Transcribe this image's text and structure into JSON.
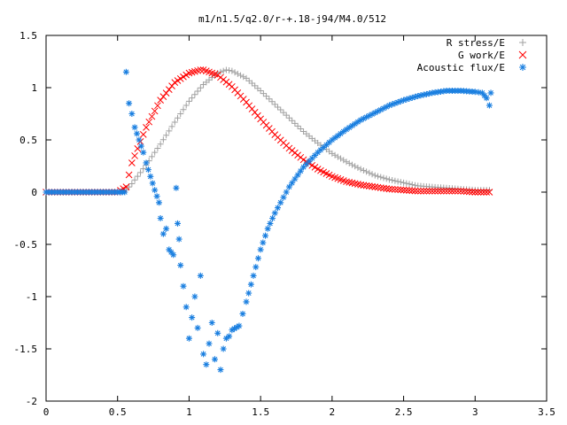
{
  "chart_data": {
    "type": "scatter",
    "title": "m1/n1.5/q2.0/r-+.18-j94/M4.0/512",
    "xlabel": "",
    "ylabel": "",
    "xlim": [
      0,
      3.5
    ],
    "ylim": [
      -2,
      1.5
    ],
    "x_ticks": [
      "0",
      "0.5",
      "1",
      "1.5",
      "2",
      "2.5",
      "3",
      "3.5"
    ],
    "y_ticks": [
      "1.5",
      "1",
      "0.5",
      "0",
      "-0.5",
      "-1",
      "-1.5",
      "-2"
    ],
    "x_tick_values": [
      0,
      0.5,
      1,
      1.5,
      2,
      2.5,
      3,
      3.5
    ],
    "y_tick_values": [
      1.5,
      1,
      0.5,
      0,
      -0.5,
      -1,
      -1.5,
      -2
    ],
    "grid": false,
    "legend_position": "top-right",
    "series": [
      {
        "name": "R stress/E",
        "marker": "plus",
        "color": "#a0a0a0",
        "x": [
          0.0,
          0.1,
          0.2,
          0.3,
          0.4,
          0.5,
          0.56,
          0.6,
          0.7,
          0.8,
          0.9,
          1.0,
          1.1,
          1.2,
          1.26,
          1.3,
          1.4,
          1.5,
          1.6,
          1.7,
          1.8,
          1.9,
          2.0,
          2.1,
          2.2,
          2.3,
          2.4,
          2.5,
          2.6,
          2.7,
          2.8,
          2.9,
          3.0,
          3.1
        ],
        "y": [
          0,
          0,
          0,
          0,
          0,
          0,
          0.02,
          0.08,
          0.26,
          0.46,
          0.67,
          0.87,
          1.03,
          1.14,
          1.17,
          1.16,
          1.09,
          0.97,
          0.84,
          0.71,
          0.58,
          0.47,
          0.37,
          0.29,
          0.22,
          0.16,
          0.12,
          0.09,
          0.06,
          0.05,
          0.04,
          0.03,
          0.02,
          0.02
        ]
      },
      {
        "name": "G work/E",
        "marker": "cross",
        "color": "#ff0000",
        "x": [
          0.0,
          0.1,
          0.2,
          0.3,
          0.4,
          0.5,
          0.56,
          0.6,
          0.7,
          0.8,
          0.9,
          1.0,
          1.08,
          1.1,
          1.2,
          1.3,
          1.4,
          1.5,
          1.6,
          1.7,
          1.8,
          1.9,
          2.0,
          2.1,
          2.2,
          2.3,
          2.4,
          2.5,
          2.6,
          2.7,
          2.8,
          2.9,
          3.0,
          3.1
        ],
        "y": [
          0,
          0,
          0,
          0,
          0,
          0,
          0.05,
          0.28,
          0.62,
          0.88,
          1.05,
          1.14,
          1.17,
          1.17,
          1.12,
          1.01,
          0.86,
          0.7,
          0.55,
          0.42,
          0.31,
          0.22,
          0.15,
          0.1,
          0.07,
          0.05,
          0.03,
          0.02,
          0.01,
          0.01,
          0.01,
          0.01,
          0.0,
          0.0
        ]
      },
      {
        "name": "Acoustic flux/E",
        "marker": "star",
        "color": "#1a7fe0",
        "x": [
          0.0,
          0.1,
          0.2,
          0.3,
          0.4,
          0.5,
          0.55,
          0.56,
          0.58,
          0.6,
          0.62,
          0.65,
          0.68,
          0.7,
          0.73,
          0.76,
          0.79,
          0.8,
          0.82,
          0.84,
          0.86,
          0.89,
          0.91,
          0.92,
          0.93,
          0.94,
          0.96,
          0.98,
          1.0,
          1.02,
          1.04,
          1.06,
          1.08,
          1.1,
          1.12,
          1.14,
          1.16,
          1.18,
          1.2,
          1.22,
          1.24,
          1.26,
          1.28,
          1.3,
          1.35,
          1.4,
          1.45,
          1.5,
          1.55,
          1.6,
          1.7,
          1.8,
          1.9,
          2.0,
          2.1,
          2.2,
          2.3,
          2.4,
          2.5,
          2.6,
          2.7,
          2.8,
          2.9,
          3.0,
          3.05,
          3.08,
          3.1,
          3.11
        ],
        "y": [
          0,
          0,
          0,
          0,
          0,
          0,
          0,
          1.15,
          0.85,
          0.75,
          0.62,
          0.5,
          0.38,
          0.28,
          0.15,
          0.02,
          -0.1,
          -0.25,
          -0.4,
          -0.35,
          -0.55,
          -0.6,
          0.04,
          -0.3,
          -0.45,
          -0.7,
          -0.9,
          -1.1,
          -1.4,
          -1.2,
          -1.0,
          -1.3,
          -0.8,
          -1.55,
          -1.65,
          -1.45,
          -1.25,
          -1.6,
          -1.35,
          -1.7,
          -1.5,
          -1.4,
          -1.38,
          -1.32,
          -1.28,
          -1.05,
          -0.8,
          -0.55,
          -0.35,
          -0.2,
          0.05,
          0.24,
          0.38,
          0.5,
          0.6,
          0.69,
          0.76,
          0.83,
          0.88,
          0.92,
          0.95,
          0.97,
          0.97,
          0.96,
          0.95,
          0.9,
          0.83,
          0.95
        ]
      }
    ]
  }
}
